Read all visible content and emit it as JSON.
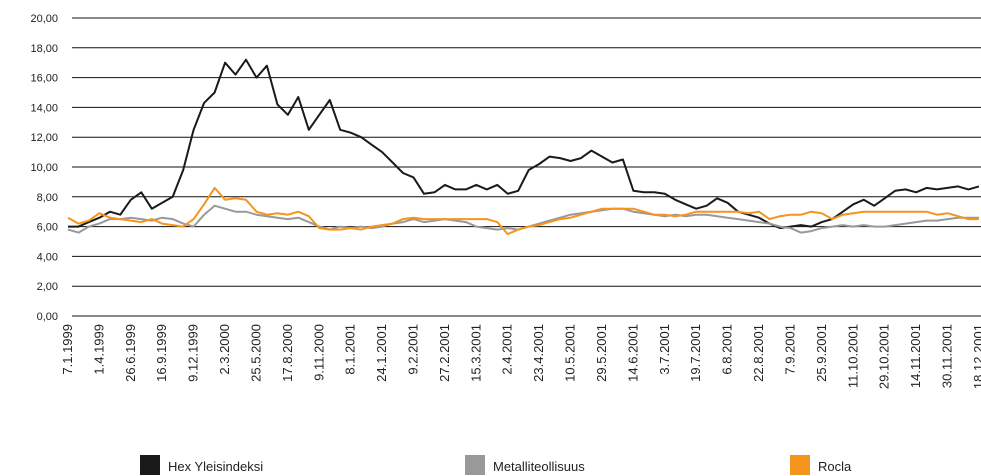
{
  "chart_data": {
    "type": "line",
    "categories": [
      "7.1.1999",
      null,
      null,
      "1.4.1999",
      null,
      null,
      "26.6.1999",
      null,
      null,
      "16.9.1999",
      null,
      null,
      "9.12.1999",
      null,
      null,
      "2.3.2000",
      null,
      null,
      "25.5.2000",
      null,
      null,
      "17.8.2000",
      null,
      null,
      "9.11.2000",
      null,
      null,
      "8.1.2001",
      null,
      null,
      "24.1.2001",
      null,
      null,
      "9.2.2001",
      null,
      null,
      "27.2.2001",
      null,
      null,
      "15.3.2001",
      null,
      null,
      "2.4.2001",
      null,
      null,
      "23.4.2001",
      null,
      null,
      "10.5.2001",
      null,
      null,
      "29.5.2001",
      null,
      null,
      "14.6.2001",
      null,
      null,
      "3.7.2001",
      null,
      null,
      "19.7.2001",
      null,
      null,
      "6.8.2001",
      null,
      null,
      "22.8.2001",
      null,
      null,
      "7.9.2001",
      null,
      null,
      "25.9.2001",
      null,
      null,
      "11.10.2001",
      null,
      null,
      "29.10.2001",
      null,
      null,
      "14.11.2001",
      null,
      null,
      "30.11.2001",
      null,
      null,
      "18.12.2001"
    ],
    "series": [
      {
        "name": "Hex Yleisindeksi",
        "color": "#1a1a1a",
        "values": [
          6.0,
          6.0,
          6.3,
          6.6,
          7.0,
          6.8,
          7.8,
          8.3,
          7.2,
          7.6,
          8.0,
          9.8,
          12.5,
          14.3,
          15.0,
          17.0,
          16.2,
          17.2,
          16.0,
          16.8,
          14.2,
          13.5,
          14.7,
          12.5,
          13.5,
          14.5,
          12.5,
          12.3,
          12.0,
          11.5,
          11.0,
          10.3,
          9.6,
          9.3,
          8.2,
          8.3,
          8.8,
          8.5,
          8.5,
          8.8,
          8.5,
          8.8,
          8.2,
          8.4,
          9.8,
          10.2,
          10.7,
          10.6,
          10.4,
          10.6,
          11.1,
          10.7,
          10.3,
          10.5,
          8.4,
          8.3,
          8.3,
          8.2,
          7.8,
          7.5,
          7.2,
          7.4,
          7.9,
          7.6,
          7.0,
          6.8,
          6.6,
          6.2,
          5.9,
          6.0,
          6.1,
          6.0,
          6.3,
          6.5,
          7.0,
          7.5,
          7.8,
          7.4,
          7.9,
          8.4,
          8.5,
          8.3,
          8.6,
          8.5,
          8.6,
          8.7,
          8.5,
          8.7
        ]
      },
      {
        "name": "Metalliteollisuus",
        "color": "#999999",
        "values": [
          5.8,
          5.6,
          6.0,
          6.2,
          6.5,
          6.5,
          6.6,
          6.5,
          6.4,
          6.6,
          6.5,
          6.2,
          6.0,
          6.8,
          7.4,
          7.2,
          7.0,
          7.0,
          6.8,
          6.7,
          6.6,
          6.5,
          6.6,
          6.3,
          6.0,
          5.8,
          6.0,
          5.9,
          6.0,
          5.9,
          6.0,
          6.2,
          6.3,
          6.5,
          6.3,
          6.4,
          6.5,
          6.4,
          6.3,
          6.0,
          5.9,
          5.8,
          5.9,
          5.8,
          6.0,
          6.2,
          6.4,
          6.6,
          6.8,
          6.9,
          7.0,
          7.1,
          7.2,
          7.2,
          7.0,
          6.9,
          6.8,
          6.7,
          6.8,
          6.7,
          6.8,
          6.8,
          6.7,
          6.6,
          6.5,
          6.4,
          6.3,
          6.2,
          6.0,
          5.9,
          5.6,
          5.7,
          5.9,
          6.0,
          6.1,
          6.0,
          6.1,
          6.0,
          6.0,
          6.1,
          6.2,
          6.3,
          6.4,
          6.4,
          6.5,
          6.6,
          6.6,
          6.6
        ]
      },
      {
        "name": "Rocla",
        "color": "#f7941d",
        "values": [
          6.6,
          6.2,
          6.4,
          6.9,
          6.6,
          6.5,
          6.4,
          6.3,
          6.5,
          6.2,
          6.1,
          6.0,
          6.5,
          7.5,
          8.6,
          7.8,
          7.9,
          7.8,
          7.0,
          6.8,
          6.9,
          6.8,
          7.0,
          6.7,
          5.9,
          5.8,
          5.8,
          5.9,
          5.8,
          6.0,
          6.1,
          6.2,
          6.5,
          6.6,
          6.5,
          6.5,
          6.5,
          6.5,
          6.5,
          6.5,
          6.5,
          6.3,
          5.5,
          5.8,
          6.0,
          6.1,
          6.3,
          6.5,
          6.6,
          6.8,
          7.0,
          7.2,
          7.2,
          7.2,
          7.2,
          7.0,
          6.8,
          6.8,
          6.7,
          6.8,
          7.0,
          7.0,
          7.0,
          7.0,
          7.0,
          6.9,
          7.0,
          6.5,
          6.7,
          6.8,
          6.8,
          7.0,
          6.9,
          6.5,
          6.8,
          6.9,
          7.0,
          7.0,
          7.0,
          7.0,
          7.0,
          7.0,
          7.0,
          6.8,
          6.9,
          6.7,
          6.5,
          6.5
        ]
      }
    ],
    "ylim": [
      0,
      20
    ],
    "yticks": [
      {
        "value": 0,
        "label": "0,00"
      },
      {
        "value": 2,
        "label": "2,00"
      },
      {
        "value": 4,
        "label": "4,00"
      },
      {
        "value": 6,
        "label": "6,00"
      },
      {
        "value": 8,
        "label": "8,00"
      },
      {
        "value": 10,
        "label": "10,00"
      },
      {
        "value": 12,
        "label": "12,00"
      },
      {
        "value": 14,
        "label": "14,00"
      },
      {
        "value": 16,
        "label": "16,00"
      },
      {
        "value": 18,
        "label": "18,00"
      },
      {
        "value": 20,
        "label": "20,00"
      }
    ],
    "grid": true,
    "legend": "bottom"
  }
}
